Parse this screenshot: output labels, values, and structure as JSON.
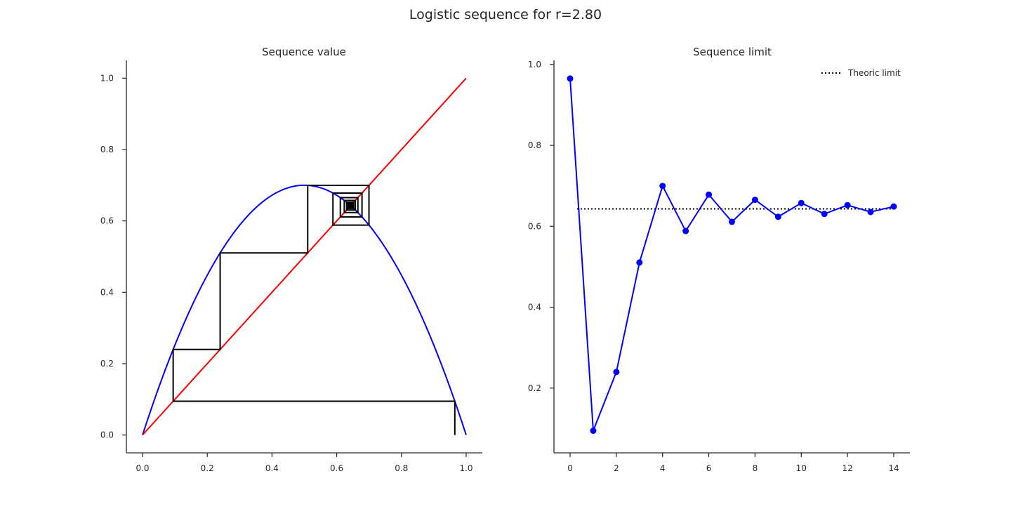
{
  "suptitle": "Logistic sequence for r=2.80",
  "colors": {
    "parabola": "#0000ff",
    "identity": "#ff0000",
    "cobweb": "#000000",
    "sequence": "#0000ff",
    "limit": "#000000"
  },
  "chart_data": [
    {
      "type": "line",
      "title": "Sequence value",
      "xlabel": "",
      "ylabel": "",
      "xlim": [
        -0.05,
        1.05
      ],
      "ylim": [
        -0.05,
        1.05
      ],
      "xticks": [
        "0.0",
        "0.2",
        "0.4",
        "0.6",
        "0.8",
        "1.0"
      ],
      "yticks": [
        "0.0",
        "0.2",
        "0.4",
        "0.6",
        "0.8",
        "1.0"
      ],
      "r": 2.8,
      "x0": 0.965,
      "series": [
        {
          "kind": "curve",
          "function": "r*x*(1-x)",
          "x_range": [
            0,
            1
          ]
        },
        {
          "kind": "curve",
          "function": "x",
          "x_range": [
            0,
            1
          ]
        },
        {
          "kind": "cobweb",
          "iterations": 60
        }
      ],
      "grid": false
    },
    {
      "type": "line",
      "title": "Sequence limit",
      "xlabel": "",
      "ylabel": "",
      "xlim": [
        -0.7,
        14.7
      ],
      "ylim": [
        0.04,
        1.01
      ],
      "xticks": [
        "0",
        "2",
        "4",
        "6",
        "8",
        "10",
        "12",
        "14"
      ],
      "yticks": [
        "0.2",
        "0.4",
        "0.6",
        "0.8",
        "1.0"
      ],
      "x": [
        0,
        1,
        2,
        3,
        4,
        5,
        6,
        7,
        8,
        9,
        10,
        11,
        12,
        13,
        14
      ],
      "series": [
        {
          "values": [
            0.965,
            0.0946,
            0.2398,
            0.5104,
            0.6997,
            0.5883,
            0.6782,
            0.6111,
            0.6654,
            0.6234,
            0.6574,
            0.6306,
            0.6522,
            0.6352,
            0.6488
          ]
        },
        {
          "name": "Theoric limit",
          "style": "dotted",
          "y": 0.6429,
          "x_range": [
            0.3,
            14
          ]
        }
      ],
      "legend": "top-right",
      "grid": false
    }
  ]
}
